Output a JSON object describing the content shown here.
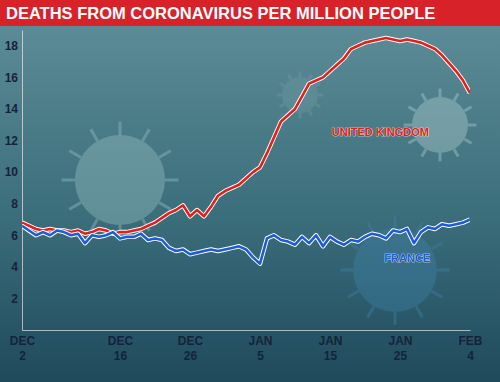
{
  "chart_data": {
    "type": "line",
    "title": "DEATHS FROM CORONAVIRUS PER MILLION PEOPLE",
    "categories": [
      "DEC 2",
      null,
      null,
      null,
      null,
      null,
      null,
      null,
      null,
      null,
      null,
      null,
      null,
      null,
      "DEC 16",
      null,
      null,
      null,
      null,
      null,
      null,
      null,
      null,
      null,
      "DEC 26",
      null,
      null,
      null,
      null,
      null,
      null,
      null,
      null,
      null,
      "JAN 5",
      null,
      null,
      null,
      null,
      null,
      null,
      null,
      null,
      null,
      "JAN 15",
      null,
      null,
      null,
      null,
      null,
      null,
      null,
      null,
      null,
      "JAN 25",
      null,
      null,
      null,
      null,
      null,
      null,
      null,
      null,
      null,
      "FEB 4"
    ],
    "series": [
      {
        "name": "UNITED KINGDOM",
        "color": "#e3211c",
        "values": [
          6.8,
          6.6,
          6.4,
          6.3,
          6.4,
          6.3,
          6.3,
          6.2,
          6.3,
          6.1,
          6.2,
          6.4,
          6.3,
          6.1,
          6.2,
          6.2,
          6.3,
          6.4,
          6.6,
          6.8,
          7.1,
          7.4,
          7.6,
          7.9,
          7.2,
          7.6,
          7.2,
          7.8,
          8.5,
          8.8,
          9.0,
          9.2,
          9.6,
          10.0,
          10.3,
          11.2,
          12.2,
          13.2,
          13.6,
          14.0,
          14.8,
          15.6,
          15.8,
          16.0,
          16.4,
          16.8,
          17.2,
          17.8,
          18.0,
          18.2,
          18.3,
          18.4,
          18.5,
          18.4,
          18.3,
          18.4,
          18.3,
          18.2,
          18.0,
          17.8,
          17.4,
          16.9,
          16.4,
          15.8,
          15.0
        ]
      },
      {
        "name": "FRANCE",
        "color": "#1d5bd8",
        "values": [
          6.6,
          6.3,
          6.0,
          6.2,
          6.0,
          6.3,
          6.2,
          6.0,
          6.1,
          5.5,
          6.0,
          5.9,
          6.0,
          6.2,
          5.8,
          5.9,
          5.9,
          6.1,
          5.7,
          5.8,
          5.7,
          5.2,
          5.0,
          5.1,
          4.8,
          4.9,
          5.0,
          5.1,
          5.0,
          5.1,
          5.2,
          5.3,
          5.1,
          4.6,
          4.2,
          5.8,
          6.0,
          5.7,
          5.6,
          5.4,
          5.9,
          5.5,
          6.0,
          5.3,
          5.9,
          5.6,
          5.4,
          5.7,
          5.6,
          5.9,
          6.1,
          6.0,
          5.8,
          6.3,
          6.2,
          6.4,
          5.5,
          6.2,
          6.5,
          6.4,
          6.7,
          6.6,
          6.7,
          6.8,
          7.0
        ]
      }
    ],
    "ylim": [
      0,
      19
    ],
    "yticks": [
      2,
      4,
      6,
      8,
      10,
      12,
      14,
      16,
      18
    ],
    "grid": false
  }
}
